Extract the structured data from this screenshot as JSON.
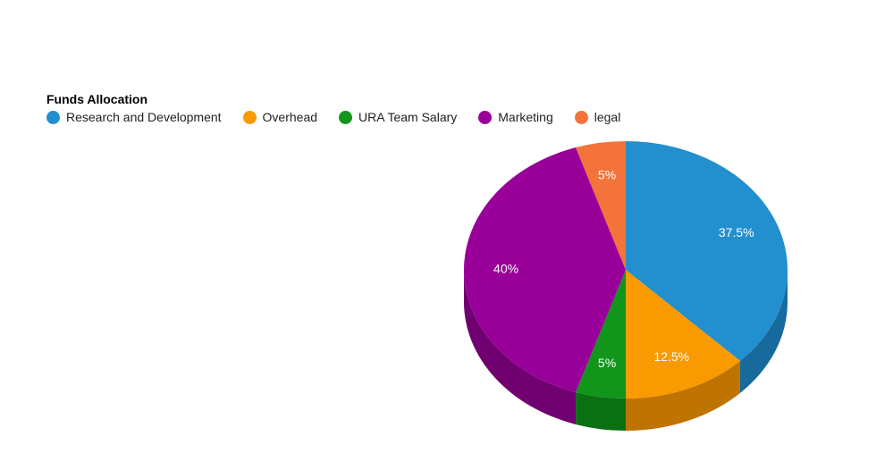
{
  "chart_data": {
    "type": "pie",
    "style": "3d",
    "title": "Funds Allocation",
    "legend_position": "top-left",
    "slices": [
      {
        "name": "Research and Development",
        "value": 37.5,
        "label": "37.5%",
        "color": "#228fcf",
        "side_color": "#176a9b"
      },
      {
        "name": "Overhead",
        "value": 12.5,
        "label": "12.5%",
        "color": "#f99a00",
        "side_color": "#bf7300"
      },
      {
        "name": "URA Team Salary",
        "value": 5,
        "label": "5%",
        "color": "#11951b",
        "side_color": "#0b6f13"
      },
      {
        "name": "Marketing",
        "value": 40,
        "label": "40%",
        "color": "#990099",
        "side_color": "#700070"
      },
      {
        "name": "legal",
        "value": 5,
        "label": "5%",
        "color": "#f4733a",
        "side_color": "#b8542a"
      }
    ]
  }
}
